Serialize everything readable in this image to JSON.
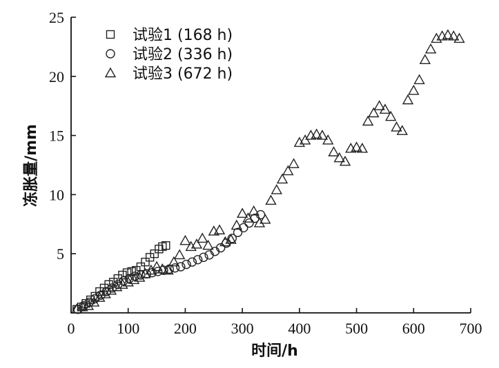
{
  "chart_data": {
    "type": "scatter",
    "xlabel": "时间/h",
    "ylabel": "冻胀量/mm",
    "xlim": [
      0,
      700
    ],
    "ylim": [
      0,
      25
    ],
    "x_ticks": [
      0,
      100,
      200,
      300,
      400,
      500,
      600,
      700
    ],
    "y_ticks": [
      5,
      10,
      15,
      20,
      25
    ],
    "grid": false,
    "legend_position": "top-left",
    "series": [
      {
        "name": "试验1 (168 h)",
        "marker": "square",
        "points": [
          [
            10,
            0.3
          ],
          [
            18,
            0.5
          ],
          [
            26,
            0.8
          ],
          [
            34,
            1.1
          ],
          [
            42,
            1.4
          ],
          [
            50,
            1.8
          ],
          [
            58,
            2.1
          ],
          [
            66,
            2.4
          ],
          [
            74,
            2.6
          ],
          [
            82,
            2.9
          ],
          [
            90,
            3.2
          ],
          [
            98,
            3.4
          ],
          [
            106,
            3.5
          ],
          [
            114,
            3.6
          ],
          [
            122,
            3.9
          ],
          [
            130,
            4.3
          ],
          [
            138,
            4.7
          ],
          [
            146,
            5.0
          ],
          [
            154,
            5.4
          ],
          [
            160,
            5.6
          ],
          [
            166,
            5.7
          ]
        ]
      },
      {
        "name": "试验2 (336 h)",
        "marker": "circle",
        "points": [
          [
            12,
            0.3
          ],
          [
            22,
            0.6
          ],
          [
            32,
            0.9
          ],
          [
            42,
            1.2
          ],
          [
            52,
            1.5
          ],
          [
            62,
            1.8
          ],
          [
            72,
            2.1
          ],
          [
            82,
            2.4
          ],
          [
            92,
            2.7
          ],
          [
            102,
            2.9
          ],
          [
            112,
            3.1
          ],
          [
            122,
            3.2
          ],
          [
            132,
            3.3
          ],
          [
            142,
            3.4
          ],
          [
            152,
            3.5
          ],
          [
            162,
            3.6
          ],
          [
            172,
            3.7
          ],
          [
            182,
            3.8
          ],
          [
            192,
            3.9
          ],
          [
            202,
            4.1
          ],
          [
            212,
            4.3
          ],
          [
            222,
            4.5
          ],
          [
            232,
            4.7
          ],
          [
            242,
            4.9
          ],
          [
            252,
            5.2
          ],
          [
            262,
            5.5
          ],
          [
            272,
            5.9
          ],
          [
            282,
            6.3
          ],
          [
            292,
            6.8
          ],
          [
            302,
            7.2
          ],
          [
            312,
            7.6
          ],
          [
            322,
            8.0
          ],
          [
            332,
            8.3
          ]
        ]
      },
      {
        "name": "试验3 (672 h)",
        "marker": "triangle",
        "points": [
          [
            10,
            0.3
          ],
          [
            20,
            0.5
          ],
          [
            30,
            0.6
          ],
          [
            40,
            0.9
          ],
          [
            50,
            1.3
          ],
          [
            60,
            1.6
          ],
          [
            70,
            1.9
          ],
          [
            80,
            2.2
          ],
          [
            90,
            2.4
          ],
          [
            100,
            2.6
          ],
          [
            110,
            2.8
          ],
          [
            120,
            3.0
          ],
          [
            130,
            3.3
          ],
          [
            140,
            3.6
          ],
          [
            150,
            3.9
          ],
          [
            160,
            3.7
          ],
          [
            170,
            3.6
          ],
          [
            180,
            4.3
          ],
          [
            190,
            4.9
          ],
          [
            200,
            6.1
          ],
          [
            210,
            5.6
          ],
          [
            220,
            5.8
          ],
          [
            230,
            6.3
          ],
          [
            240,
            5.7
          ],
          [
            250,
            6.9
          ],
          [
            260,
            7.0
          ],
          [
            270,
            6.0
          ],
          [
            280,
            6.2
          ],
          [
            290,
            7.4
          ],
          [
            300,
            8.4
          ],
          [
            310,
            8.0
          ],
          [
            320,
            8.6
          ],
          [
            330,
            7.6
          ],
          [
            340,
            7.9
          ],
          [
            350,
            9.5
          ],
          [
            360,
            10.4
          ],
          [
            370,
            11.3
          ],
          [
            380,
            12.0
          ],
          [
            390,
            12.6
          ],
          [
            400,
            14.4
          ],
          [
            410,
            14.6
          ],
          [
            420,
            15.0
          ],
          [
            430,
            15.1
          ],
          [
            440,
            15.0
          ],
          [
            450,
            14.6
          ],
          [
            460,
            13.6
          ],
          [
            470,
            13.1
          ],
          [
            480,
            12.8
          ],
          [
            490,
            13.9
          ],
          [
            500,
            14.0
          ],
          [
            510,
            13.9
          ],
          [
            520,
            16.2
          ],
          [
            530,
            16.9
          ],
          [
            540,
            17.5
          ],
          [
            550,
            17.2
          ],
          [
            560,
            16.6
          ],
          [
            570,
            15.7
          ],
          [
            580,
            15.4
          ],
          [
            590,
            18.0
          ],
          [
            600,
            18.8
          ],
          [
            610,
            19.7
          ],
          [
            620,
            21.4
          ],
          [
            630,
            22.3
          ],
          [
            640,
            23.2
          ],
          [
            650,
            23.4
          ],
          [
            660,
            23.5
          ],
          [
            670,
            23.4
          ],
          [
            680,
            23.2
          ]
        ]
      }
    ]
  }
}
